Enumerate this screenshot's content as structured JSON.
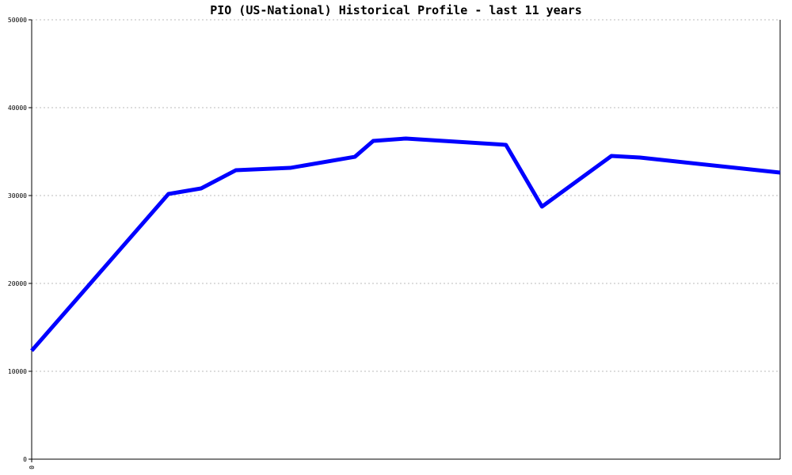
{
  "chart_data": {
    "type": "line",
    "title": "PIO (US-National) Historical Profile - last 11 years",
    "x": [
      0,
      2.01,
      2.49,
      3.0,
      3.8,
      4.75,
      5.02,
      5.5,
      6.97,
      7.5,
      8.52,
      8.94,
      11
    ],
    "series": [
      {
        "color": "#0000ff",
        "values": [
          12340,
          30180,
          30810,
          32880,
          33150,
          34410,
          36220,
          36490,
          35770,
          28740,
          34500,
          34320,
          32610
        ]
      }
    ],
    "xlim": [
      0,
      11
    ],
    "xticks": [
      0
    ],
    "ylim": [
      0,
      50000
    ],
    "yticks": [
      0,
      10000,
      20000,
      30000,
      40000,
      50000
    ],
    "grid": true
  }
}
